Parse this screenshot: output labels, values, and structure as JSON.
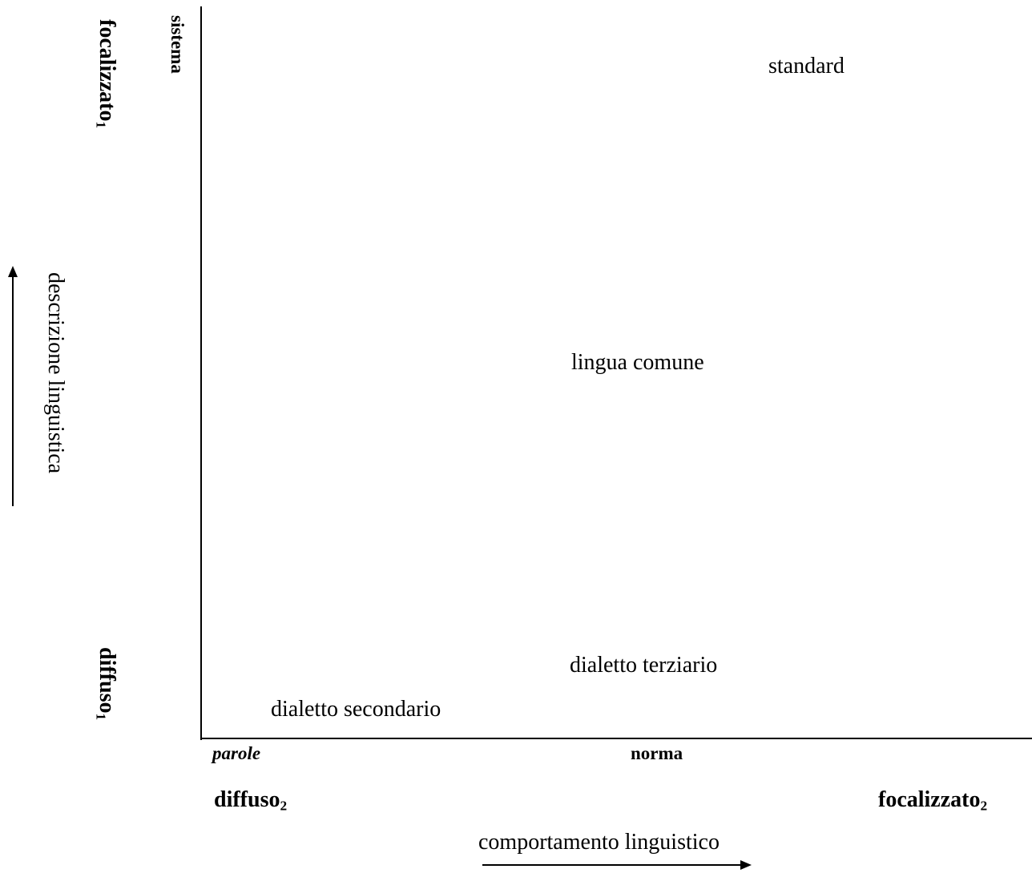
{
  "y_axis": {
    "top_label": "focalizzato",
    "top_label_sub": "1",
    "top_sublabel": "sistema",
    "bottom_label": "diffuso",
    "bottom_label_sub": "1",
    "arrow_label": "descrizione linguistica"
  },
  "x_axis": {
    "left_label": "diffuso",
    "left_label_sub": "2",
    "right_label": "focalizzato",
    "right_label_sub": "2",
    "left_sublabel": "parole",
    "middle_sublabel": "norma",
    "arrow_label": "comportamento linguistico"
  },
  "points": [
    {
      "label": "standard"
    },
    {
      "label": "lingua comune"
    },
    {
      "label": "dialetto terziario"
    },
    {
      "label": "dialetto secondario"
    }
  ]
}
